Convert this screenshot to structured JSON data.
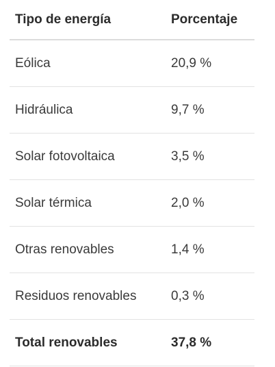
{
  "table": {
    "headers": [
      "Tipo de energía",
      "Porcentaje"
    ],
    "rows": [
      [
        "Eólica",
        "20,9 %"
      ],
      [
        "Hidráulica",
        "9,7 %"
      ],
      [
        "Solar fotovoltaica",
        "3,5 %"
      ],
      [
        "Solar térmica",
        "2,0 %"
      ],
      [
        "Otras renovables",
        "1,4 %"
      ],
      [
        "Residuos renovables",
        "0,3 %"
      ]
    ],
    "total": [
      "Total renovables",
      "37,8 %"
    ]
  },
  "colors": {
    "text": "#333333",
    "border": "#e2e2e2",
    "header_border": "#dcdcdc"
  }
}
